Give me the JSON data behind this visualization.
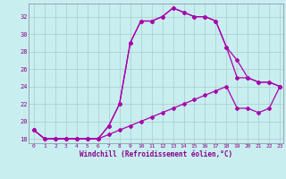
{
  "xlabel": "Windchill (Refroidissement éolien,°C)",
  "bg_color": "#c8eef0",
  "line_color": "#aa00aa",
  "grid_color": "#aacccc",
  "xmin": -0.5,
  "xmax": 23.3,
  "ymin": 17.5,
  "ymax": 33.5,
  "yticks": [
    18,
    20,
    22,
    24,
    26,
    28,
    30,
    32
  ],
  "xticks": [
    0,
    1,
    2,
    3,
    4,
    5,
    6,
    7,
    8,
    9,
    10,
    11,
    12,
    13,
    14,
    15,
    16,
    17,
    18,
    19,
    20,
    21,
    22,
    23
  ],
  "cA_x": [
    0,
    1,
    2,
    3,
    4,
    5,
    6,
    7,
    8,
    9,
    10,
    11,
    12,
    13,
    14,
    15,
    16,
    17,
    18,
    19,
    20,
    21,
    22,
    23
  ],
  "cA_y": [
    19.0,
    18.0,
    18.0,
    18.0,
    18.0,
    18.0,
    18.0,
    19.5,
    22.0,
    29.0,
    31.5,
    31.5,
    32.0,
    33.0,
    32.5,
    32.0,
    32.0,
    31.5,
    28.5,
    27.0,
    25.0,
    24.5,
    24.5,
    24.0
  ],
  "cB_x": [
    0,
    1,
    2,
    3,
    4,
    5,
    6,
    7,
    8,
    9,
    10,
    11,
    12,
    13,
    14,
    15,
    16,
    17,
    18,
    19,
    20,
    21,
    22,
    23
  ],
  "cB_y": [
    19.0,
    18.0,
    18.0,
    18.0,
    18.0,
    18.0,
    18.0,
    19.5,
    22.0,
    29.0,
    31.5,
    31.5,
    32.0,
    33.0,
    32.5,
    32.0,
    32.0,
    31.5,
    28.5,
    25.0,
    25.0,
    24.5,
    24.5,
    24.0
  ],
  "cC_x": [
    0,
    1,
    2,
    3,
    4,
    5,
    6,
    7,
    8,
    9,
    10,
    11,
    12,
    13,
    14,
    15,
    16,
    17,
    18,
    19,
    20,
    21,
    22,
    23
  ],
  "cC_y": [
    19.0,
    18.0,
    18.0,
    18.0,
    18.0,
    18.0,
    18.0,
    18.5,
    19.0,
    19.5,
    20.0,
    20.5,
    21.0,
    21.5,
    22.0,
    22.5,
    23.0,
    23.5,
    24.0,
    21.5,
    21.5,
    21.0,
    21.5,
    24.0
  ]
}
